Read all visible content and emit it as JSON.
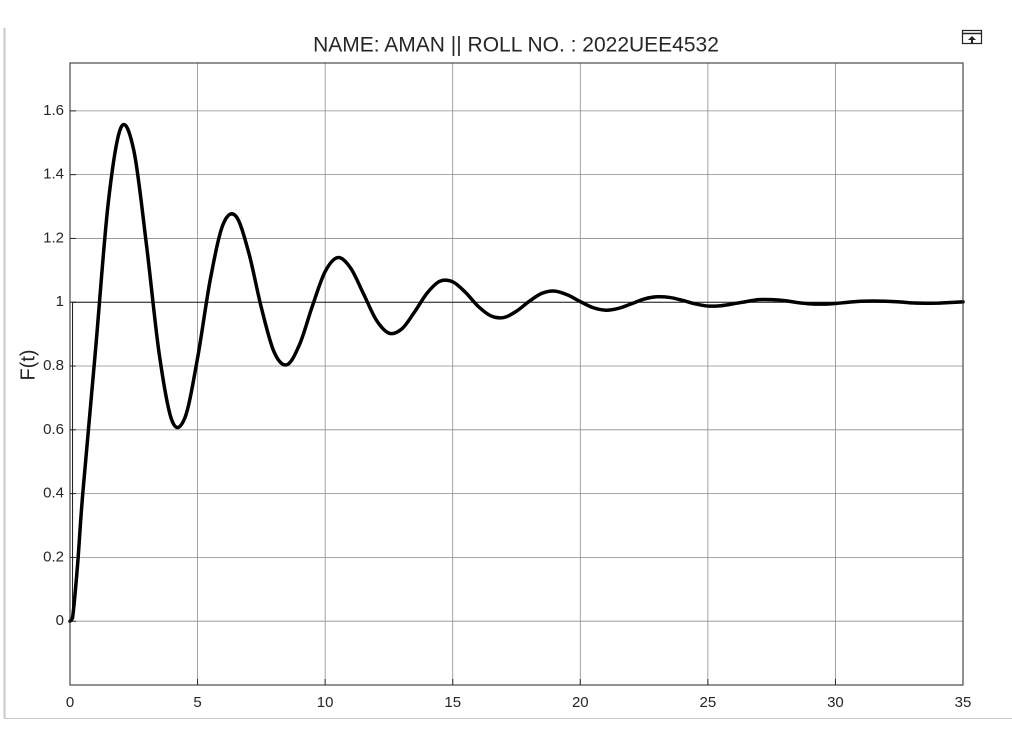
{
  "chart_data": {
    "type": "line",
    "title": "NAME: AMAN || ROLL NO. : 2022UEE4532",
    "y_label": "F(t)",
    "xlim": [
      0,
      35
    ],
    "ylim": [
      -0.2,
      1.75
    ],
    "xticks": [
      0,
      5,
      10,
      15,
      20,
      25,
      30,
      35
    ],
    "yticks": [
      0,
      0.2,
      0.4,
      0.6,
      0.8,
      1,
      1.2,
      1.4,
      1.6
    ],
    "grid": true,
    "series": [
      {
        "color": "#1a1a1a",
        "width": 1,
        "x": [
          0,
          0.1,
          0.1,
          35
        ],
        "values": [
          0,
          0,
          1,
          1
        ]
      },
      {
        "color": "#000000",
        "width": 3.5,
        "x": [
          0,
          0.1,
          0.3,
          0.5,
          1,
          1.5,
          2,
          2.5,
          3,
          3.5,
          4,
          4.5,
          5,
          5.5,
          6,
          6.5,
          7,
          7.5,
          8,
          8.5,
          9,
          9.5,
          10,
          10.5,
          11,
          11.5,
          12,
          12.5,
          13,
          13.5,
          14,
          14.5,
          15,
          15.5,
          16,
          16.5,
          17,
          17.5,
          18,
          18.5,
          19,
          19.5,
          20,
          20.5,
          21,
          21.5,
          22,
          22.5,
          23,
          23.5,
          24,
          24.5,
          25,
          25.5,
          26,
          26.5,
          27,
          27.5,
          28,
          28.5,
          29,
          29.5,
          30,
          30.5,
          31,
          31.5,
          32,
          32.5,
          33,
          33.5,
          34,
          34.5,
          35
        ],
        "values": [
          0,
          0.01,
          0.18,
          0.4,
          0.85,
          1.312,
          1.548,
          1.476,
          1.178,
          0.836,
          0.628,
          0.637,
          0.825,
          1.072,
          1.244,
          1.27,
          1.157,
          0.983,
          0.844,
          0.804,
          0.868,
          0.988,
          1.096,
          1.14,
          1.107,
          1.027,
          0.945,
          0.903,
          0.916,
          0.969,
          1.029,
          1.066,
          1.064,
          1.031,
          0.987,
          0.957,
          0.952,
          0.972,
          1.003,
          1.028,
          1.035,
          1.023,
          1.002,
          0.983,
          0.975,
          0.981,
          0.995,
          1.01,
          1.017,
          1.015,
          1.006,
          0.995,
          0.988,
          0.989,
          0.995,
          1.002,
          1.008,
          1.008,
          1.005,
          0.999,
          0.995,
          0.994,
          0.996,
          1.0,
          1.003,
          1.004,
          1.003,
          1.001,
          0.998,
          0.997,
          0.997,
          0.999,
          1.001
        ]
      }
    ]
  }
}
